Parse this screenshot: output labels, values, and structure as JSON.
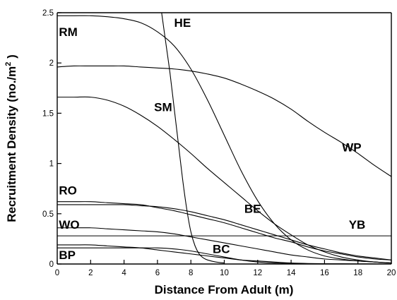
{
  "chart_data": {
    "type": "line",
    "title": "",
    "xlabel": "Distance From Adult (m)",
    "ylabel": "Recruitment Density (no./m",
    "ylabel_sup": "2",
    "ylabel_tail": " )",
    "xlim": [
      0,
      20
    ],
    "ylim": [
      0,
      2.5
    ],
    "x_ticks": [
      0,
      2,
      4,
      6,
      8,
      10,
      12,
      14,
      16,
      18,
      20
    ],
    "y_ticks": [
      0,
      0.5,
      1,
      1.5,
      2,
      2.5
    ],
    "y_tick_labels": [
      "0",
      "0.5",
      "1",
      "1.5",
      "2",
      "2.5"
    ],
    "grid": false,
    "legend": "none (series labeled directly on curves)",
    "x": [
      0,
      1,
      2,
      3,
      4,
      5,
      6,
      7,
      8,
      9,
      10,
      11,
      12,
      13,
      14,
      15,
      16,
      17,
      18,
      19,
      20
    ],
    "series": [
      {
        "name": "HE",
        "points": [
          [
            6.25,
            2.5
          ],
          [
            6.5,
            2.2
          ],
          [
            6.75,
            1.9
          ],
          [
            7,
            1.55
          ],
          [
            7.25,
            1.2
          ],
          [
            7.5,
            0.85
          ],
          [
            7.75,
            0.55
          ],
          [
            8,
            0.32
          ],
          [
            8.25,
            0.18
          ],
          [
            8.5,
            0.1
          ],
          [
            8.75,
            0.06
          ],
          [
            9,
            0.04
          ],
          [
            9.5,
            0.02
          ],
          [
            10,
            0.01
          ]
        ]
      },
      {
        "name": "RM",
        "values": [
          2.47,
          2.47,
          2.47,
          2.46,
          2.44,
          2.4,
          2.31,
          2.17,
          1.94,
          1.63,
          1.28,
          0.93,
          0.63,
          0.4,
          0.24,
          0.14,
          0.08,
          0.05,
          0.03,
          0.02,
          0.01
        ]
      },
      {
        "name": "WP",
        "values": [
          1.96,
          1.97,
          1.97,
          1.97,
          1.97,
          1.96,
          1.95,
          1.94,
          1.92,
          1.89,
          1.85,
          1.79,
          1.72,
          1.64,
          1.54,
          1.42,
          1.31,
          1.21,
          1.1,
          0.98,
          0.87
        ]
      },
      {
        "name": "SM",
        "values": [
          1.66,
          1.66,
          1.66,
          1.63,
          1.57,
          1.48,
          1.37,
          1.24,
          1.1,
          0.95,
          0.81,
          0.67,
          0.53,
          0.4,
          0.29,
          0.19,
          0.12,
          0.07,
          0.04,
          0.02,
          0.01
        ]
      },
      {
        "name": "RO",
        "values": [
          0.62,
          0.62,
          0.62,
          0.61,
          0.6,
          0.59,
          0.56,
          0.53,
          0.49,
          0.45,
          0.41,
          0.36,
          0.31,
          0.26,
          0.22,
          0.17,
          0.13,
          0.1,
          0.07,
          0.05,
          0.04
        ]
      },
      {
        "name": "BE",
        "values": [
          0.59,
          0.59,
          0.59,
          0.59,
          0.59,
          0.58,
          0.57,
          0.55,
          0.52,
          0.48,
          0.44,
          0.39,
          0.34,
          0.29,
          0.24,
          0.19,
          0.15,
          0.11,
          0.08,
          0.06,
          0.04
        ]
      },
      {
        "name": "WO",
        "values": [
          0.36,
          0.36,
          0.36,
          0.35,
          0.34,
          0.33,
          0.32,
          0.3,
          0.27,
          0.24,
          0.21,
          0.18,
          0.15,
          0.12,
          0.09,
          0.07,
          0.05,
          0.04,
          0.03,
          0.02,
          0.01
        ]
      },
      {
        "name": "YB",
        "values": [
          0.28,
          0.28,
          0.28,
          0.28,
          0.28,
          0.28,
          0.28,
          0.28,
          0.28,
          0.28,
          0.28,
          0.28,
          0.28,
          0.28,
          0.28,
          0.28,
          0.28,
          0.28,
          0.28,
          0.28,
          0.28
        ]
      },
      {
        "name": "BC",
        "values": [
          0.19,
          0.19,
          0.19,
          0.18,
          0.17,
          0.16,
          0.14,
          0.12,
          0.1,
          0.08,
          0.06,
          0.04,
          0.03,
          0.02,
          0.01,
          0.005,
          0.003,
          0.002,
          0.001,
          0.001,
          0.0
        ]
      },
      {
        "name": "BP",
        "values": [
          0.16,
          0.16,
          0.16,
          0.16,
          0.16,
          0.16,
          0.16,
          0.15,
          0.13,
          0.1,
          0.07,
          0.04,
          0.02,
          0.01,
          0.005,
          0.003,
          0.002,
          0.001,
          0.0,
          0.0,
          0.0
        ]
      }
    ],
    "labels": [
      {
        "text": "HE",
        "x": 7.0,
        "y": 2.36
      },
      {
        "text": "RM",
        "x": 0.1,
        "y": 2.27
      },
      {
        "text": "SM",
        "x": 5.8,
        "y": 1.52
      },
      {
        "text": "WP",
        "x": 17.05,
        "y": 1.12
      },
      {
        "text": "RO",
        "x": 0.1,
        "y": 0.69
      },
      {
        "text": "BE",
        "x": 11.2,
        "y": 0.51
      },
      {
        "text": "WO",
        "x": 0.1,
        "y": 0.35
      },
      {
        "text": "YB",
        "x": 17.45,
        "y": 0.35
      },
      {
        "text": "BC",
        "x": 9.3,
        "y": 0.11
      },
      {
        "text": "BP",
        "x": 0.1,
        "y": 0.05
      }
    ]
  }
}
